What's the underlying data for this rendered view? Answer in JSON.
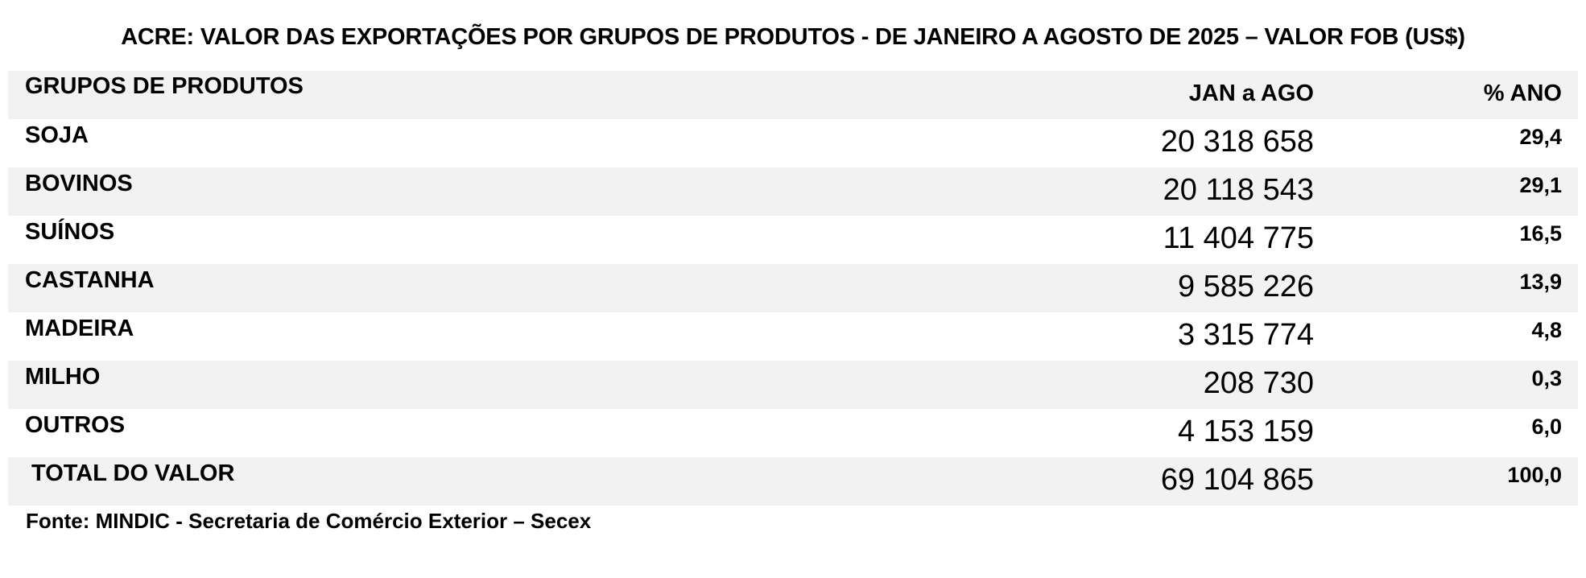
{
  "chart_data": {
    "type": "table",
    "title": "ACRE: VALOR DAS EXPORTAÇÕES POR GRUPOS DE PRODUTOS - DE JANEIRO A AGOSTO DE 2025 – VALOR FOB (US$)",
    "columns": [
      "GRUPOS DE PRODUTOS",
      "JAN a AGO",
      "% ANO"
    ],
    "rows": [
      {
        "group": "SOJA",
        "value": "20 318 658",
        "pct": "29,4"
      },
      {
        "group": "BOVINOS",
        "value": "20 118 543",
        "pct": "29,1"
      },
      {
        "group": "SUÍNOS",
        "value": "11 404 775",
        "pct": "16,5"
      },
      {
        "group": "CASTANHA",
        "value": "9 585 226",
        "pct": "13,9"
      },
      {
        "group": "MADEIRA",
        "value": "3 315 774",
        "pct": "4,8"
      },
      {
        "group": "MILHO",
        "value": "208 730",
        "pct": "0,3"
      },
      {
        "group": "OUTROS",
        "value": "4 153 159",
        "pct": "6,0"
      }
    ],
    "total": {
      "group": "TOTAL DO VALOR",
      "value": "69 104 865",
      "pct": "100,0"
    },
    "source": "Fonte: MINDIC - Secretaria de Comércio Exterior – Secex"
  }
}
